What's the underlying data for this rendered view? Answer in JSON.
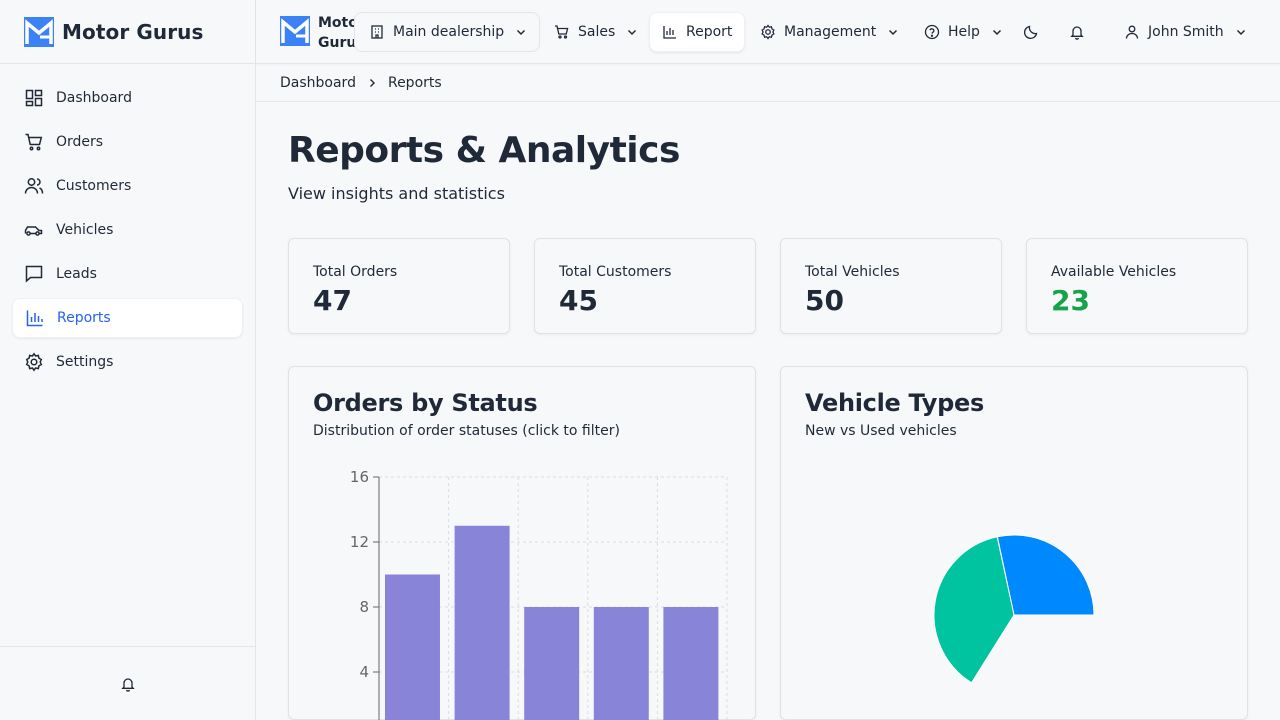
{
  "brand": {
    "name": "Motor Gurus",
    "top_line1": "Motor",
    "top_line2": "Gurus"
  },
  "sidebar": {
    "items": [
      {
        "label": "Dashboard",
        "icon": "dashboard-icon"
      },
      {
        "label": "Orders",
        "icon": "cart-icon"
      },
      {
        "label": "Customers",
        "icon": "users-icon"
      },
      {
        "label": "Vehicles",
        "icon": "car-icon"
      },
      {
        "label": "Leads",
        "icon": "message-icon"
      },
      {
        "label": "Reports",
        "icon": "bar-chart-icon",
        "active": true
      },
      {
        "label": "Settings",
        "icon": "gear-icon"
      }
    ]
  },
  "topbar": {
    "dealership": "Main dealership",
    "sales": "Sales",
    "report": "Report",
    "management": "Management",
    "help": "Help",
    "user": "John Smith"
  },
  "breadcrumb": {
    "root": "Dashboard",
    "current": "Reports"
  },
  "page": {
    "title": "Reports & Analytics",
    "subtitle": "View insights and statistics"
  },
  "stats": [
    {
      "label": "Total Orders",
      "value": "47"
    },
    {
      "label": "Total Customers",
      "value": "45"
    },
    {
      "label": "Total Vehicles",
      "value": "50"
    },
    {
      "label": "Available Vehicles",
      "value": "23",
      "color": "#16a34a"
    }
  ],
  "cards": {
    "orders": {
      "title": "Orders by Status",
      "subtitle": "Distribution of order statuses (click to filter)"
    },
    "vehicles": {
      "title": "Vehicle Types",
      "subtitle": "New vs Used vehicles"
    }
  },
  "colors": {
    "accent": "#2563eb",
    "bar": "#8884d8",
    "pie_blue": "#0088fe",
    "pie_teal": "#00c49f",
    "green": "#16a34a"
  },
  "chart_data": [
    {
      "type": "bar",
      "yticks": [
        4,
        8,
        12,
        16
      ],
      "ylim": [
        0,
        16
      ],
      "values": [
        10,
        13,
        8,
        8,
        8
      ],
      "grid": true
    },
    {
      "type": "pie",
      "slices": [
        {
          "value": 27,
          "color": "#0088fe"
        },
        {
          "value": 23,
          "color": "#00c49f"
        }
      ],
      "visible_fraction": [
        0.0,
        0.44
      ]
    }
  ]
}
